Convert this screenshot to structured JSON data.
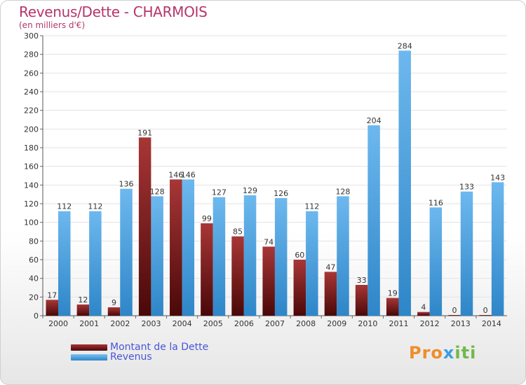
{
  "chart_data": {
    "type": "bar",
    "title": "Revenus/Dette - CHARMOIS",
    "subtitle": "(en milliers d'€)",
    "categories": [
      "2000",
      "2001",
      "2002",
      "2003",
      "2004",
      "2005",
      "2006",
      "2007",
      "2008",
      "2009",
      "2010",
      "2011",
      "2012",
      "2013",
      "2014"
    ],
    "series": [
      {
        "name": "Montant de la Dette",
        "color": "#7a1c1c",
        "values": [
          17,
          12,
          9,
          191,
          146,
          99,
          85,
          74,
          60,
          47,
          33,
          19,
          4,
          0,
          0
        ]
      },
      {
        "name": "Revenus",
        "color": "#4aa3e3",
        "values": [
          112,
          112,
          136,
          128,
          146,
          127,
          129,
          126,
          112,
          128,
          204,
          284,
          116,
          133,
          143
        ]
      }
    ],
    "ylim": [
      0,
      300
    ],
    "yticks": [
      0,
      20,
      40,
      60,
      80,
      100,
      120,
      140,
      160,
      180,
      200,
      220,
      240,
      260,
      280,
      300
    ],
    "grid": true,
    "legend_position": "bottom-left"
  },
  "branding": {
    "logo_parts": [
      "Pro",
      "x",
      "iti"
    ]
  }
}
